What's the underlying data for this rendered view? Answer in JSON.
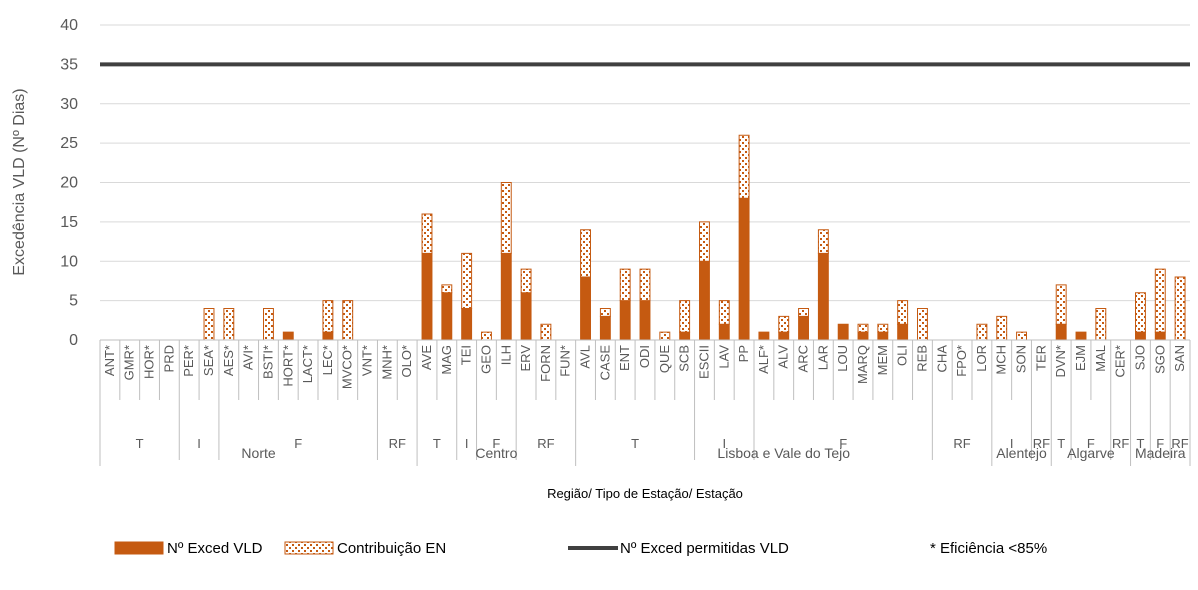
{
  "chart_data": {
    "type": "bar",
    "stacked": true,
    "ylabel": "Excedência VLD (Nº Dias)",
    "xlabel": "Região/ Tipo de Estação/ Estação",
    "ylim": [
      0,
      40
    ],
    "yticks": [
      0,
      5,
      10,
      15,
      20,
      25,
      30,
      35,
      40
    ],
    "grid": true,
    "regions": [
      {
        "name": "Norte",
        "types": [
          {
            "name": "T",
            "stations": [
              "ANT*",
              "GMR*",
              "HOR*",
              "PRD"
            ]
          },
          {
            "name": "I",
            "stations": [
              "PER*",
              "SEA*"
            ]
          },
          {
            "name": "F",
            "stations": [
              "AES*",
              "AVI*",
              "BSTI*",
              "HORT*",
              "LACT*",
              "LEC*",
              "MVCO*",
              "VNT*"
            ]
          },
          {
            "name": "RF",
            "stations": [
              "MNH*",
              "OLO*"
            ]
          }
        ]
      },
      {
        "name": "Centro",
        "types": [
          {
            "name": "T",
            "stations": [
              "AVE",
              "MAG"
            ]
          },
          {
            "name": "I",
            "stations": [
              "TEI"
            ]
          },
          {
            "name": "F",
            "stations": [
              "GEO",
              "ILH"
            ]
          },
          {
            "name": "RF",
            "stations": [
              "ERV",
              "FORN",
              "FUN*"
            ]
          }
        ]
      },
      {
        "name": "Lisboa e Vale do Tejo",
        "types": [
          {
            "name": "T",
            "stations": [
              "AVL",
              "CASE",
              "ENT",
              "ODI",
              "QUE",
              "SCB"
            ]
          },
          {
            "name": "I",
            "stations": [
              "ESCII",
              "LAV",
              "PP"
            ]
          },
          {
            "name": "F",
            "stations": [
              "ALF*",
              "ALV",
              "ARC",
              "LAR",
              "LOU",
              "MARQ",
              "MEM",
              "OLI",
              "REB"
            ]
          },
          {
            "name": "RF",
            "stations": [
              "CHA",
              "FPO*",
              "LOR"
            ]
          }
        ]
      },
      {
        "name": "Alentejo",
        "types": [
          {
            "name": "I",
            "stations": [
              "MCH",
              "SON"
            ]
          },
          {
            "name": "RF",
            "stations": [
              "TER"
            ]
          }
        ]
      },
      {
        "name": "Algarve",
        "types": [
          {
            "name": "T",
            "stations": [
              "DVN*"
            ]
          },
          {
            "name": "F",
            "stations": [
              "EJM",
              "MAL"
            ]
          },
          {
            "name": "RF",
            "stations": [
              "CER*"
            ]
          }
        ]
      },
      {
        "name": "Madeira",
        "types": [
          {
            "name": "T",
            "stations": [
              "SJO"
            ]
          },
          {
            "name": "F",
            "stations": [
              "SGO"
            ]
          },
          {
            "name": "RF",
            "stations": [
              "SAN"
            ]
          }
        ]
      }
    ],
    "series": [
      {
        "name": "Nº Exced VLD",
        "color": "#c55a11",
        "values": [
          0,
          0,
          0,
          0,
          0,
          0,
          0,
          0,
          0,
          1,
          0,
          1,
          0,
          0,
          0,
          0,
          11,
          6,
          4,
          0,
          11,
          6,
          0,
          0,
          8,
          3,
          5,
          5,
          0,
          1,
          10,
          2,
          18,
          1,
          1,
          3,
          11,
          2,
          1,
          1,
          2,
          0,
          0,
          0,
          0,
          0,
          0,
          0,
          2,
          1,
          0,
          0,
          1,
          1,
          0
        ]
      },
      {
        "name": "Contribuição EN",
        "color": "#c55a11",
        "pattern": "dots",
        "values": [
          0,
          0,
          0,
          0,
          0,
          4,
          4,
          0,
          4,
          0,
          0,
          4,
          5,
          0,
          0,
          0,
          5,
          1,
          7,
          1,
          9,
          3,
          2,
          0,
          6,
          1,
          4,
          4,
          1,
          4,
          5,
          3,
          8,
          0,
          2,
          1,
          3,
          0,
          1,
          1,
          3,
          4,
          0,
          0,
          2,
          3,
          1,
          0,
          5,
          0,
          4,
          0,
          5,
          8,
          8
        ]
      }
    ],
    "threshold": {
      "name": "Nº Exced permitidas VLD",
      "value": 35,
      "color": "#404040"
    },
    "footnote": "* Eficiência <85%"
  }
}
